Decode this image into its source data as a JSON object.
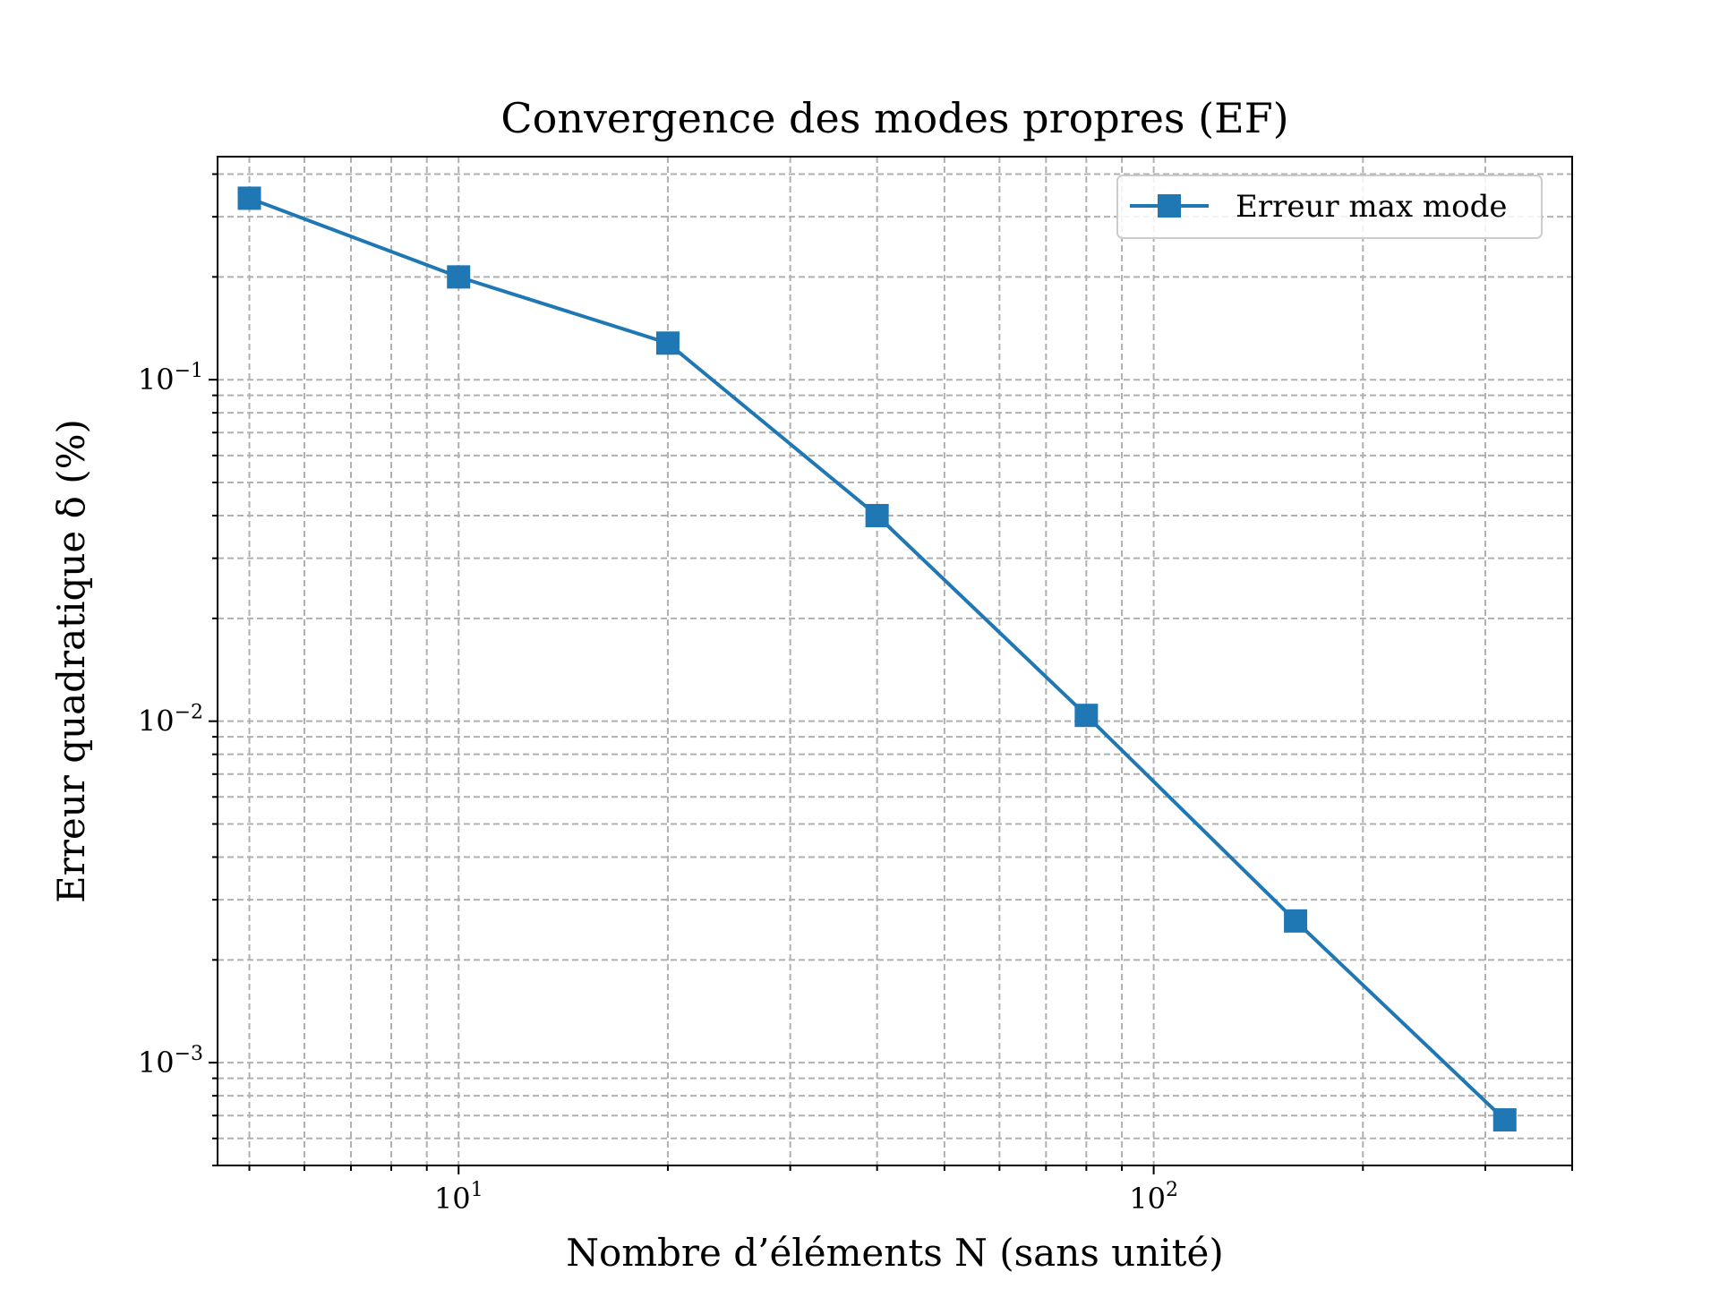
{
  "chart_data": {
    "type": "line",
    "title": "Convergence des modes propres (EF)",
    "xlabel": "Nombre d’éléments N (sans unité)",
    "ylabel": "Erreur quadratique δ (%)",
    "xscale": "log",
    "yscale": "log",
    "xlim": [
      4.5,
      400
    ],
    "ylim": [
      0.0005,
      0.45
    ],
    "grid": true,
    "legend_position": "top-right",
    "x_ticks": [
      {
        "base": "10",
        "exp": "1",
        "value": 10
      },
      {
        "base": "10",
        "exp": "2",
        "value": 100
      }
    ],
    "y_ticks": [
      {
        "base": "10",
        "exp": "−1",
        "value": 0.1
      },
      {
        "base": "10",
        "exp": "−2",
        "value": 0.01
      },
      {
        "base": "10",
        "exp": "−3",
        "value": 0.001
      }
    ],
    "series": [
      {
        "name": "Erreur max mode",
        "color": "#1f77b4",
        "marker": "square",
        "x": [
          5,
          10,
          20,
          40,
          80,
          160,
          320
        ],
        "y": [
          0.34,
          0.2,
          0.128,
          0.04,
          0.0104,
          0.0026,
          0.00068
        ]
      }
    ]
  }
}
